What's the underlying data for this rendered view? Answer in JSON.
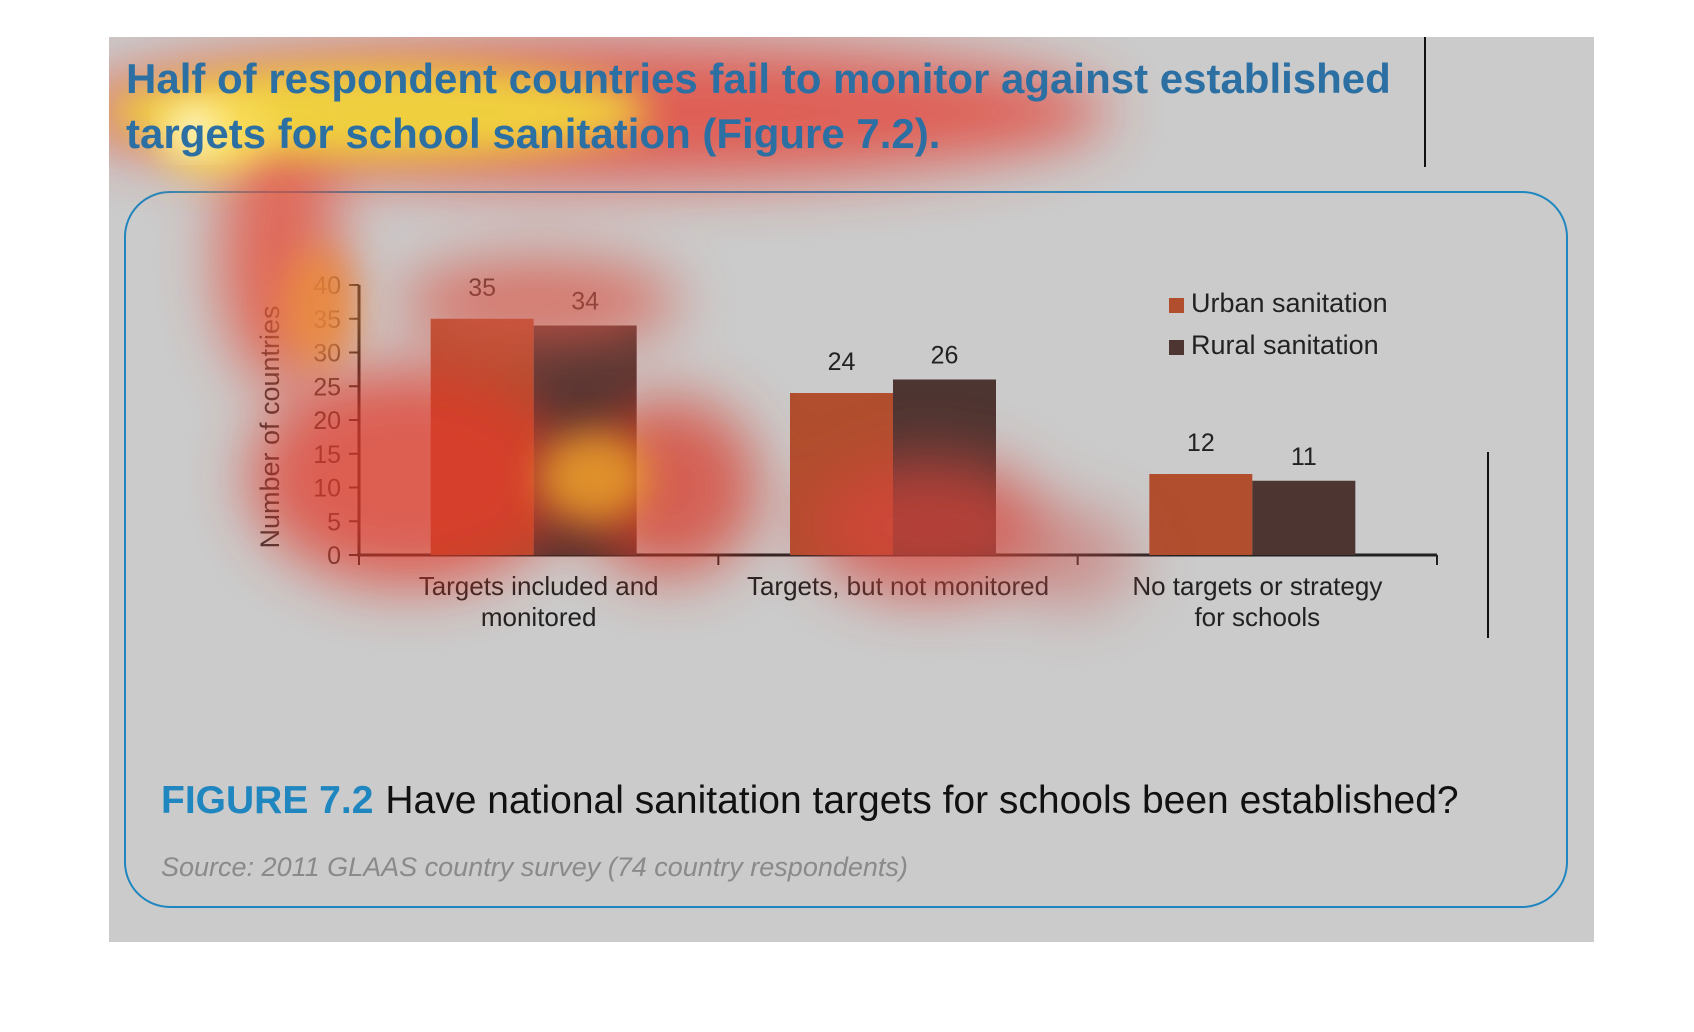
{
  "headline": "Half of respondent countries fail to monitor against established targets for school sanitation (Figure 7.2).",
  "figure": {
    "label": "FIGURE 7.2",
    "title": "Have national sanitation targets for schools been established?",
    "source": "Source: 2011 GLAAS country survey (74 country respondents)"
  },
  "colors": {
    "urban": "#b04e2e",
    "rural": "#4d3532",
    "accent": "#1f86bf",
    "headline": "#2b6fa3"
  },
  "chart_data": {
    "type": "bar",
    "categories": [
      [
        "Targets included and",
        "monitored"
      ],
      [
        "Targets, but not monitored"
      ],
      [
        "No targets or strategy",
        "for schools"
      ]
    ],
    "series": [
      {
        "name": "Urban sanitation",
        "values": [
          35,
          24,
          12
        ]
      },
      {
        "name": "Rural sanitation",
        "values": [
          34,
          26,
          11
        ]
      }
    ],
    "ylabel": "Number of countries",
    "yticks": [
      0,
      5,
      10,
      15,
      20,
      25,
      30,
      35,
      40
    ],
    "ylim": [
      0,
      40
    ],
    "legend_position": "top-right",
    "grid": false
  }
}
